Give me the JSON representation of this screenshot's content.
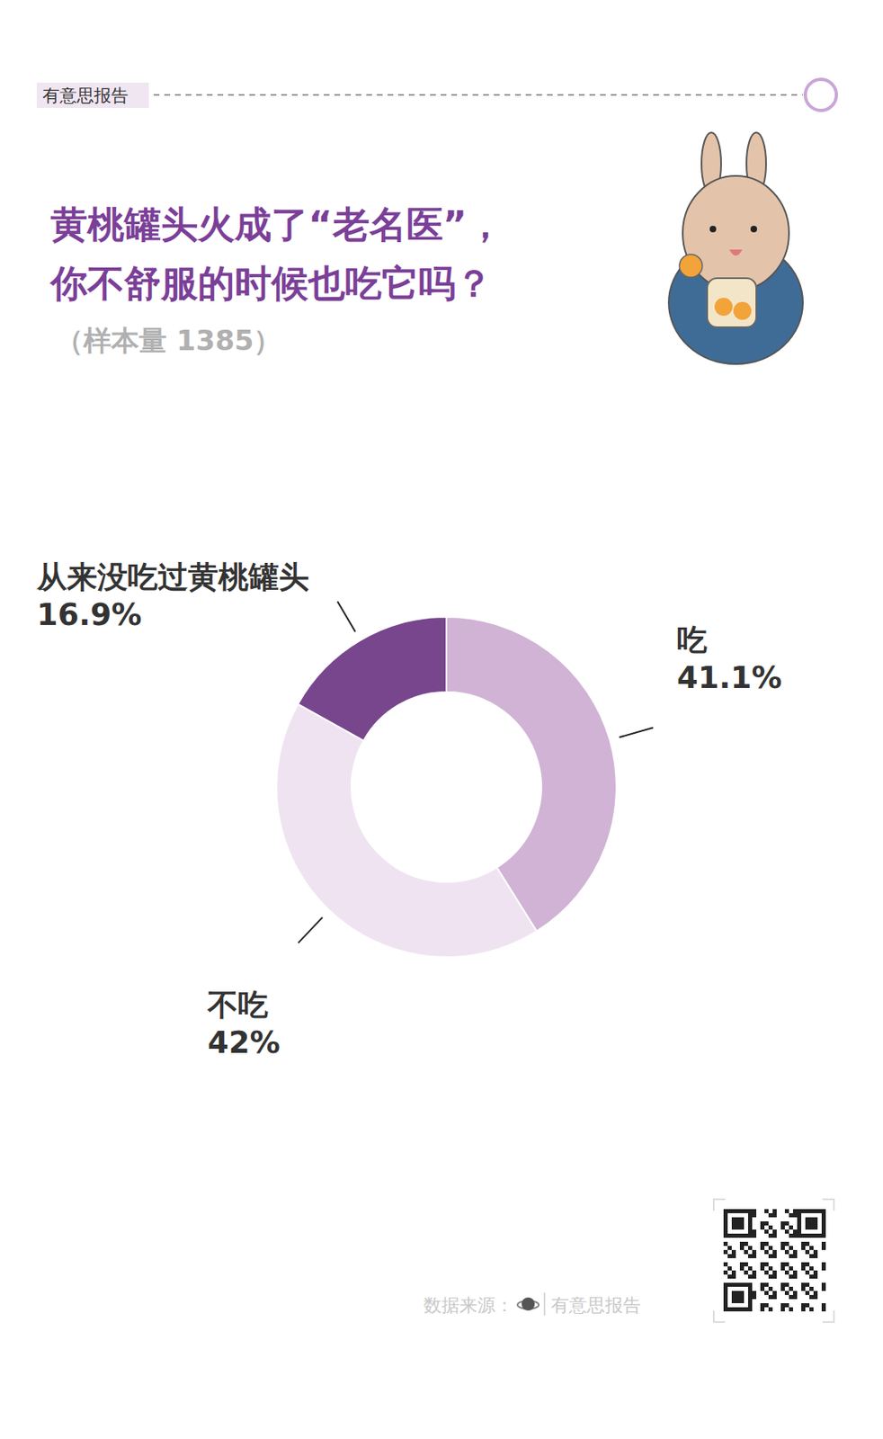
{
  "header": {
    "tag": "有意思报告"
  },
  "chart_data": {
    "type": "donut",
    "title": [
      "黄桃罐头火成了“老名医”，",
      "你不舒服的时候也吃它吗？"
    ],
    "subtitle": "（样本量 1385）",
    "categories": [
      "吃",
      "不吃",
      "从来没吃过黄桃罐头"
    ],
    "values": [
      41.1,
      42,
      16.9
    ],
    "value_labels": [
      "41.1%",
      "42%",
      "16.9%"
    ],
    "colors": [
      "#d1b3d6",
      "#efe3f1",
      "#77468d"
    ],
    "data_labels": true
  },
  "footer": {
    "source_label": "数据来源：",
    "source": "有意思报告"
  }
}
